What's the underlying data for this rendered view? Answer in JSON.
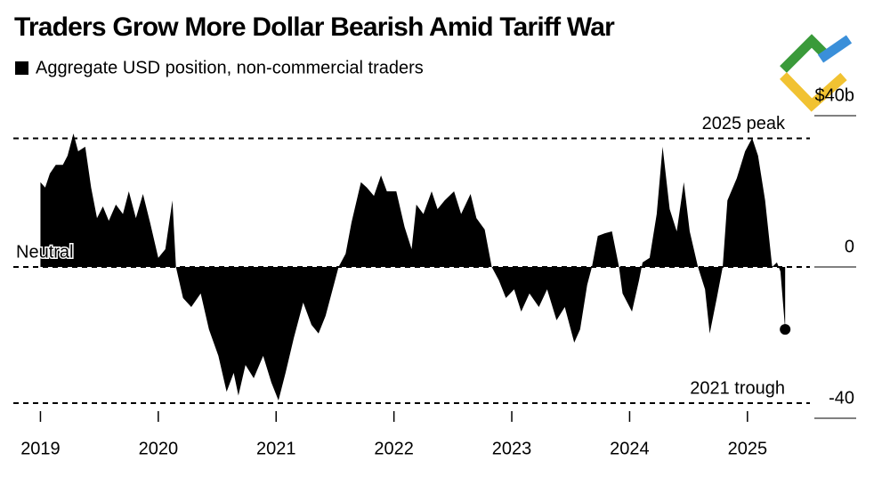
{
  "chart_data": {
    "type": "area",
    "title": "Traders Grow More Dollar Bearish Amid Tariff War",
    "subtitle": "Aggregate USD position, non-commercial traders",
    "color": "#000000",
    "x": [
      2019.0,
      2019.04,
      2019.08,
      2019.13,
      2019.19,
      2019.23,
      2019.28,
      2019.32,
      2019.38,
      2019.43,
      2019.48,
      2019.53,
      2019.58,
      2019.64,
      2019.7,
      2019.75,
      2019.81,
      2019.87,
      2019.93,
      2020.0,
      2020.06,
      2020.12,
      2020.15,
      2020.21,
      2020.28,
      2020.36,
      2020.43,
      2020.51,
      2020.58,
      2020.64,
      2020.68,
      2020.74,
      2020.81,
      2020.89,
      2020.96,
      2021.02,
      2021.08,
      2021.15,
      2021.23,
      2021.3,
      2021.36,
      2021.42,
      2021.49,
      2021.53,
      2021.59,
      2021.64,
      2021.72,
      2021.77,
      2021.83,
      2021.89,
      2021.94,
      2022.02,
      2022.09,
      2022.15,
      2022.19,
      2022.25,
      2022.32,
      2022.37,
      2022.43,
      2022.51,
      2022.57,
      2022.65,
      2022.7,
      2022.77,
      2022.83,
      2022.89,
      2022.95,
      2023.02,
      2023.08,
      2023.15,
      2023.23,
      2023.3,
      2023.38,
      2023.45,
      2023.53,
      2023.58,
      2023.64,
      2023.68,
      2023.73,
      2023.79,
      2023.85,
      2023.91,
      2023.94,
      2024.02,
      2024.08,
      2024.11,
      2024.17,
      2024.23,
      2024.28,
      2024.34,
      2024.4,
      2024.46,
      2024.51,
      2024.58,
      2024.64,
      2024.68,
      2024.74,
      2024.79,
      2024.83,
      2024.91,
      2024.98,
      2025.04,
      2025.09,
      2025.15,
      2025.21,
      2025.25,
      2025.28,
      2025.32
    ],
    "values": [
      22.4,
      21,
      24.7,
      27,
      27,
      29.4,
      35.3,
      30.6,
      31.8,
      21,
      12.9,
      16,
      12.2,
      16.5,
      14,
      20,
      12.9,
      19.3,
      11.8,
      2.4,
      4.7,
      17.6,
      0,
      -8.2,
      -10.6,
      -7,
      -16.5,
      -23.5,
      -33,
      -28,
      -34,
      -25.9,
      -29.4,
      -23.5,
      -30.6,
      -35.3,
      -28,
      -18.8,
      -9.4,
      -15.3,
      -17.6,
      -12.9,
      -4.7,
      0,
      3.5,
      11.8,
      22.4,
      21,
      18.8,
      24.2,
      20,
      20,
      10.6,
      4.7,
      16.5,
      14,
      20,
      15.3,
      17.6,
      20,
      14,
      19.3,
      12.9,
      9.9,
      0,
      -3.5,
      -8.2,
      -5.9,
      -11.8,
      -7,
      -10.6,
      -5.9,
      -14.1,
      -10.6,
      -20,
      -16.5,
      -4.7,
      0,
      8.2,
      8.9,
      9.4,
      0,
      -7,
      -11.8,
      -3.5,
      1.2,
      2.4,
      14,
      31.8,
      15.3,
      9.4,
      22.4,
      9.4,
      0,
      -5.9,
      -17.6,
      -8.2,
      0,
      17.6,
      23.5,
      30.6,
      34.1,
      29.4,
      17.6,
      0,
      1.2,
      -1.2,
      -16.5
    ],
    "xlim": [
      2018.77,
      2025.53
    ],
    "xticks": [
      2019,
      2020,
      2021,
      2022,
      2023,
      2024,
      2025
    ],
    "ylim": [
      -40,
      40
    ],
    "yticks": [
      {
        "value": 40,
        "label": "$40b"
      },
      0,
      -40
    ],
    "annotations": [
      {
        "text": "2025 peak",
        "value": 34
      },
      {
        "text": "Neutral",
        "value": 0
      },
      {
        "text": "2021 trough",
        "value": -36
      }
    ]
  }
}
